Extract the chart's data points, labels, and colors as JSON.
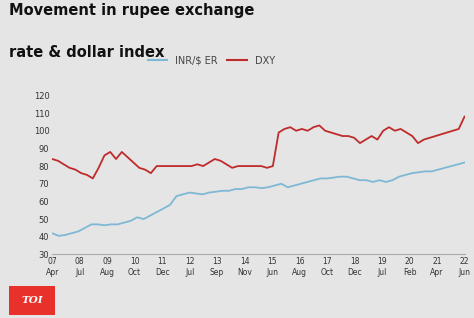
{
  "title_line1": "Movement in rupee exchange",
  "title_line2": "rate & dollar index",
  "background_color": "#e5e5e5",
  "plot_bg_color": "#e5e5e5",
  "ylim": [
    30,
    120
  ],
  "yticks": [
    30,
    40,
    50,
    60,
    70,
    80,
    90,
    100,
    110,
    120
  ],
  "xlabel_pairs": [
    [
      "07",
      "Apr"
    ],
    [
      "08",
      "Jul"
    ],
    [
      "09",
      "Aug"
    ],
    [
      "10",
      "Oct"
    ],
    [
      "11",
      "Dec"
    ],
    [
      "12",
      "Jul"
    ],
    [
      "13",
      "Sep"
    ],
    [
      "14",
      "Nov"
    ],
    [
      "15",
      "Jun"
    ],
    [
      "16",
      "Aug"
    ],
    [
      "17",
      "Oct"
    ],
    [
      "18",
      "Dec"
    ],
    [
      "19",
      "Jul"
    ],
    [
      "20",
      "Feb"
    ],
    [
      "21",
      "Apr"
    ],
    [
      "22",
      "Jun"
    ]
  ],
  "inr_color": "#7eb8d4",
  "dxy_color": "#bf2b2b",
  "legend_labels": [
    "INR/$ ER",
    "DXY"
  ],
  "toi_color": "#e8312a",
  "inr_values": [
    42,
    40.5,
    41,
    42,
    43,
    45,
    47,
    47,
    46.5,
    47,
    47,
    48,
    49,
    51,
    50,
    52,
    54,
    56,
    58,
    63,
    64,
    65,
    64.5,
    64,
    65,
    65.5,
    66,
    66,
    67,
    67,
    68,
    68,
    67.5,
    68,
    69,
    70,
    68,
    69,
    70,
    71,
    72,
    73,
    73,
    73.5,
    74,
    74,
    73,
    72,
    72,
    71,
    72,
    71,
    72,
    74,
    75,
    76,
    76.5,
    77,
    77,
    78,
    79,
    80,
    81,
    82
  ],
  "dxy_values": [
    84,
    83,
    81,
    79,
    78,
    76,
    75,
    73,
    79,
    86,
    88,
    84,
    88,
    85,
    82,
    79,
    78,
    76,
    80,
    80,
    80,
    80,
    80,
    80,
    80,
    81,
    80,
    82,
    84,
    83,
    81,
    79,
    80,
    80,
    80,
    80,
    80,
    79,
    80,
    99,
    101,
    102,
    100,
    101,
    100,
    102,
    103,
    100,
    99,
    98,
    97,
    97,
    96,
    93,
    95,
    97,
    95,
    100,
    102,
    100,
    101,
    99,
    97,
    93,
    95,
    96,
    97,
    98,
    99,
    100,
    101,
    108
  ]
}
